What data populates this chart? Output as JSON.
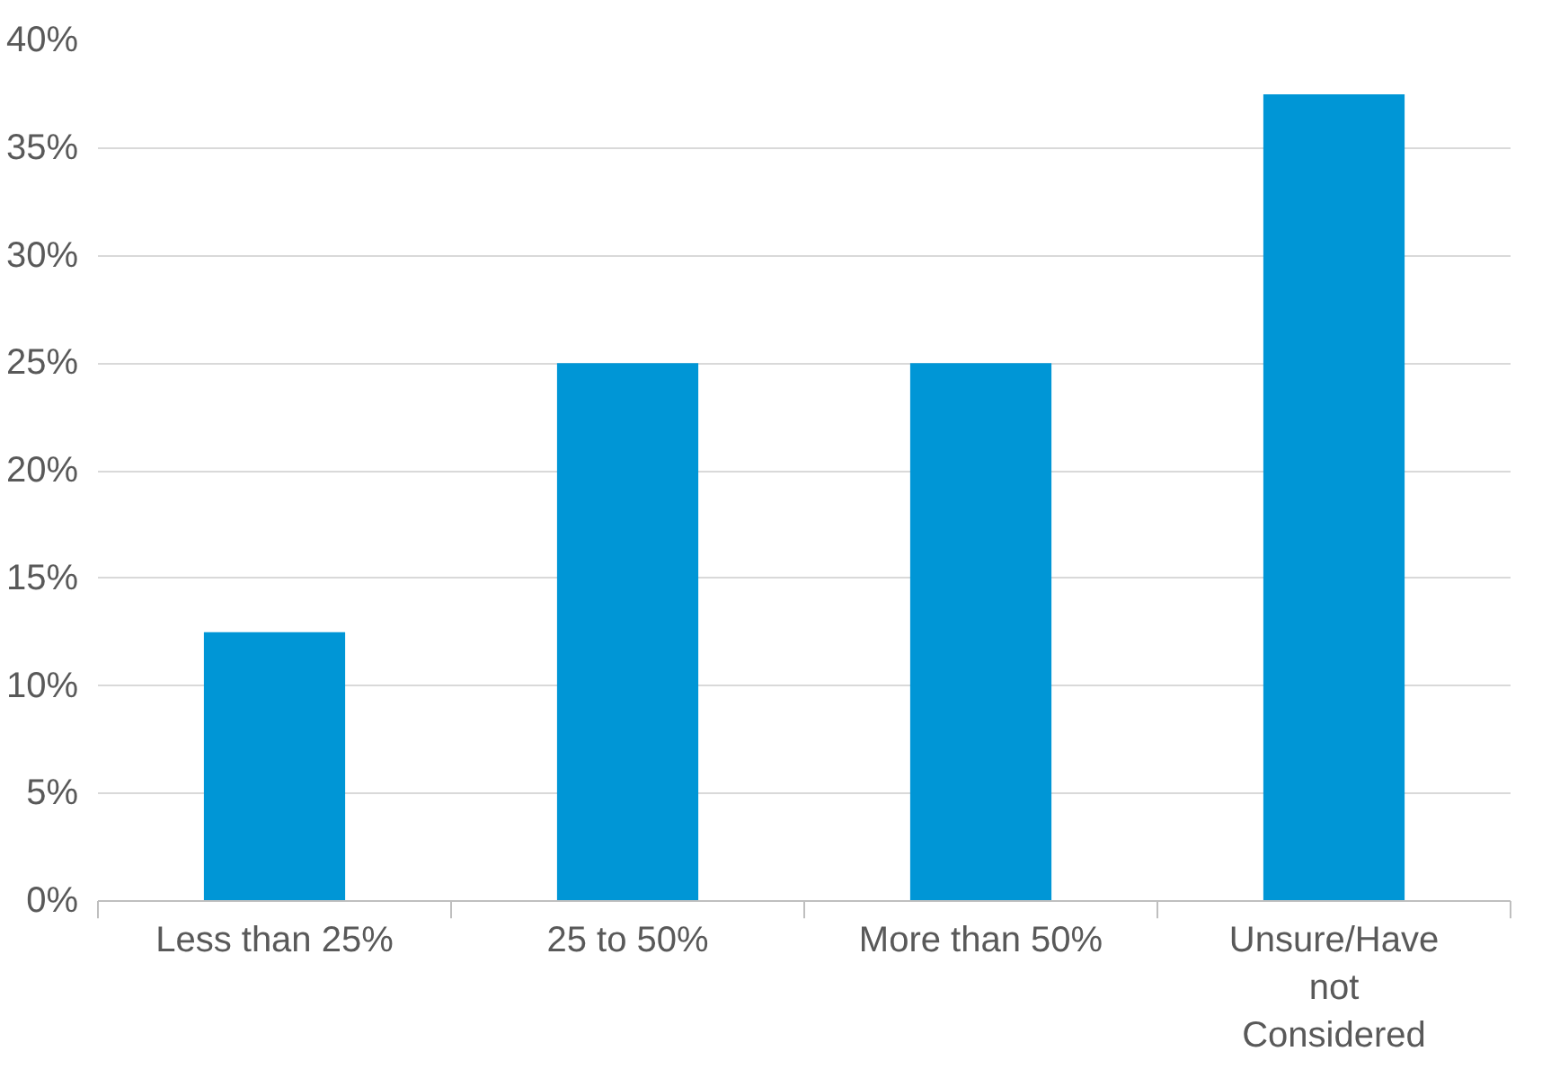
{
  "chart_data": {
    "type": "bar",
    "categories": [
      "Less than 25%",
      "25 to 50%",
      "More than 50%",
      "Unsure/Have not Considered"
    ],
    "values": [
      12.5,
      25,
      25,
      37.5
    ],
    "color": "#0096d6",
    "ylim": [
      0,
      40
    ],
    "yticks": [
      {
        "value": 0,
        "label": "0%"
      },
      {
        "value": 5,
        "label": "5%"
      },
      {
        "value": 10,
        "label": "10%"
      },
      {
        "value": 15,
        "label": "15%"
      },
      {
        "value": 20,
        "label": "20%"
      },
      {
        "value": 25,
        "label": "25%"
      },
      {
        "value": 30,
        "label": "30%"
      },
      {
        "value": 35,
        "label": "35%"
      },
      {
        "value": 40,
        "label": "40%"
      }
    ],
    "grid": "y"
  }
}
